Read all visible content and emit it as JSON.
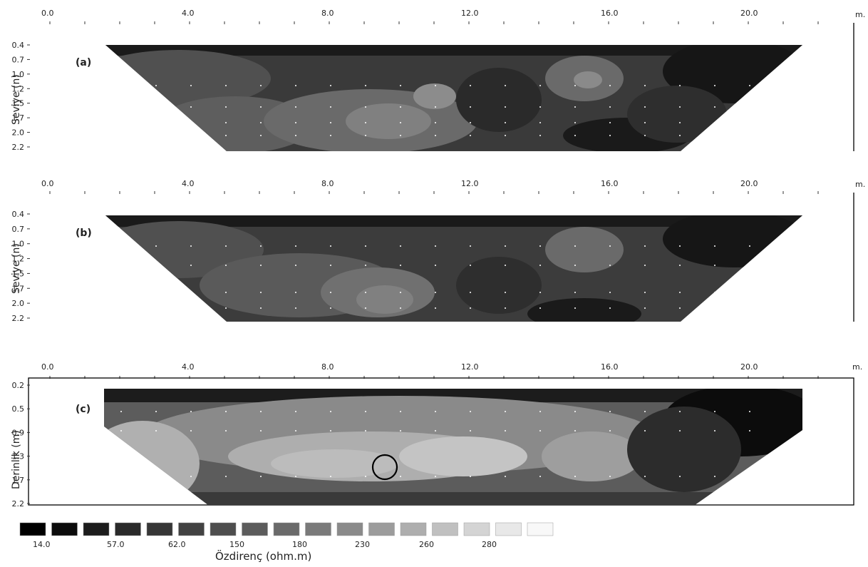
{
  "figure": {
    "unit_label": "m.",
    "x_ticks": [
      "0.0",
      "4.0",
      "8.0",
      "12.0",
      "16.0",
      "20.0"
    ],
    "colorbar": {
      "title": "Özdirenç (ohm.m)",
      "tick_labels": [
        "14.0",
        "57.0",
        "62.0",
        "150",
        "180",
        "230",
        "260",
        "280"
      ],
      "n_classes": 17
    }
  },
  "panels": [
    {
      "label": "(a)",
      "ylabel": "Seviye (n)",
      "y_ticks": [
        "0.4",
        "0.7",
        "1.0",
        "1.2",
        "1.5",
        "1.7",
        "2.0",
        "2.2"
      ],
      "kind": "trapezoid"
    },
    {
      "label": "(b)",
      "ylabel": "Seviye (n)",
      "y_ticks": [
        "0.4",
        "0.7",
        "1.0",
        "1.2",
        "1.5",
        "1.7",
        "2.0",
        "2.2"
      ],
      "kind": "trapezoid"
    },
    {
      "label": "(c)",
      "ylabel": "Derinlik (m)",
      "y_ticks": [
        "0.2",
        "0.5",
        "0.9",
        "1.3",
        "1.7",
        "2.2"
      ],
      "kind": "depth"
    }
  ],
  "colors": {
    "ramp": [
      "#000000",
      "#0c0c0c",
      "#1c1c1c",
      "#2a2a2a",
      "#363636",
      "#424242",
      "#4e4e4e",
      "#5c5c5c",
      "#6a6a6a",
      "#7a7a7a",
      "#8a8a8a",
      "#9c9c9c",
      "#aeaeae",
      "#c0c0c0",
      "#d4d4d4",
      "#e8e8e8",
      "#f8f8f8"
    ]
  }
}
